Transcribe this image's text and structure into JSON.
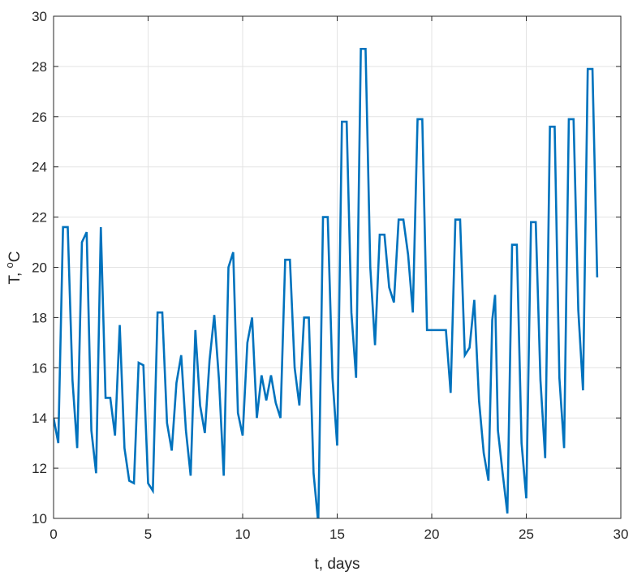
{
  "chart_data": {
    "type": "line",
    "xlabel": "t, days",
    "ylabel_main": "T, ",
    "ylabel_sup": "o",
    "ylabel_unit": "C",
    "xlim": [
      0,
      30
    ],
    "ylim": [
      10,
      30
    ],
    "grid": true,
    "x_ticks": [
      "0",
      "5",
      "10",
      "15",
      "20",
      "25",
      "30"
    ],
    "y_ticks": [
      "10",
      "12",
      "14",
      "16",
      "18",
      "20",
      "22",
      "24",
      "26",
      "28",
      "30"
    ],
    "series": [
      {
        "color": "#0072BD",
        "points": [
          [
            0.0,
            14.0
          ],
          [
            0.25,
            13.0
          ],
          [
            0.5,
            21.6
          ],
          [
            0.75,
            21.6
          ],
          [
            1.0,
            15.5
          ],
          [
            1.25,
            12.8
          ],
          [
            1.5,
            21.0
          ],
          [
            1.75,
            21.4
          ],
          [
            2.0,
            13.5
          ],
          [
            2.25,
            11.8
          ],
          [
            2.5,
            21.6
          ],
          [
            2.75,
            14.8
          ],
          [
            3.0,
            14.8
          ],
          [
            3.25,
            13.3
          ],
          [
            3.5,
            17.7
          ],
          [
            3.75,
            12.8
          ],
          [
            4.0,
            11.5
          ],
          [
            4.25,
            11.4
          ],
          [
            4.5,
            16.2
          ],
          [
            4.75,
            16.1
          ],
          [
            5.0,
            11.4
          ],
          [
            5.25,
            11.1
          ],
          [
            5.5,
            18.2
          ],
          [
            5.75,
            18.2
          ],
          [
            6.0,
            13.8
          ],
          [
            6.25,
            12.7
          ],
          [
            6.5,
            15.4
          ],
          [
            6.75,
            16.5
          ],
          [
            7.0,
            13.5
          ],
          [
            7.25,
            11.7
          ],
          [
            7.5,
            17.5
          ],
          [
            7.75,
            14.5
          ],
          [
            8.0,
            13.4
          ],
          [
            8.25,
            16.3
          ],
          [
            8.5,
            18.1
          ],
          [
            8.75,
            15.5
          ],
          [
            9.0,
            11.7
          ],
          [
            9.25,
            20.0
          ],
          [
            9.5,
            20.6
          ],
          [
            9.75,
            14.2
          ],
          [
            10.0,
            13.3
          ],
          [
            10.25,
            17.0
          ],
          [
            10.5,
            18.0
          ],
          [
            10.75,
            14.0
          ],
          [
            11.0,
            15.7
          ],
          [
            11.25,
            14.7
          ],
          [
            11.5,
            15.7
          ],
          [
            11.75,
            14.6
          ],
          [
            12.0,
            14.0
          ],
          [
            12.25,
            20.3
          ],
          [
            12.5,
            20.3
          ],
          [
            12.75,
            16.0
          ],
          [
            13.0,
            14.5
          ],
          [
            13.25,
            18.0
          ],
          [
            13.5,
            18.0
          ],
          [
            13.75,
            11.8
          ],
          [
            14.0,
            9.8
          ],
          [
            14.25,
            22.0
          ],
          [
            14.5,
            22.0
          ],
          [
            14.75,
            15.6
          ],
          [
            15.0,
            12.9
          ],
          [
            15.25,
            25.8
          ],
          [
            15.5,
            25.8
          ],
          [
            15.75,
            18.2
          ],
          [
            16.0,
            15.6
          ],
          [
            16.25,
            28.7
          ],
          [
            16.5,
            28.7
          ],
          [
            16.75,
            20.0
          ],
          [
            17.0,
            16.9
          ],
          [
            17.25,
            21.3
          ],
          [
            17.5,
            21.3
          ],
          [
            17.75,
            19.2
          ],
          [
            18.0,
            18.6
          ],
          [
            18.25,
            21.9
          ],
          [
            18.5,
            21.9
          ],
          [
            18.75,
            20.5
          ],
          [
            19.0,
            18.2
          ],
          [
            19.25,
            25.9
          ],
          [
            19.5,
            25.9
          ],
          [
            19.75,
            17.5
          ],
          [
            20.0,
            17.5
          ],
          [
            20.25,
            17.5
          ],
          [
            20.5,
            17.5
          ],
          [
            20.75,
            17.5
          ],
          [
            21.0,
            15.0
          ],
          [
            21.25,
            21.9
          ],
          [
            21.5,
            21.9
          ],
          [
            21.75,
            16.5
          ],
          [
            22.0,
            16.8
          ],
          [
            22.25,
            18.7
          ],
          [
            22.5,
            14.7
          ],
          [
            22.75,
            12.6
          ],
          [
            23.0,
            11.5
          ],
          [
            23.2,
            17.9
          ],
          [
            23.35,
            18.9
          ],
          [
            23.5,
            13.5
          ],
          [
            23.75,
            11.8
          ],
          [
            24.0,
            10.2
          ],
          [
            24.25,
            20.9
          ],
          [
            24.5,
            20.9
          ],
          [
            24.75,
            13.0
          ],
          [
            25.0,
            10.8
          ],
          [
            25.25,
            21.8
          ],
          [
            25.5,
            21.8
          ],
          [
            25.75,
            15.5
          ],
          [
            26.0,
            12.4
          ],
          [
            26.25,
            25.6
          ],
          [
            26.5,
            25.6
          ],
          [
            26.75,
            15.6
          ],
          [
            27.0,
            12.8
          ],
          [
            27.25,
            25.9
          ],
          [
            27.5,
            25.9
          ],
          [
            27.75,
            18.3
          ],
          [
            28.0,
            15.1
          ],
          [
            28.25,
            27.9
          ],
          [
            28.5,
            27.9
          ],
          [
            28.75,
            19.6
          ]
        ]
      }
    ]
  }
}
